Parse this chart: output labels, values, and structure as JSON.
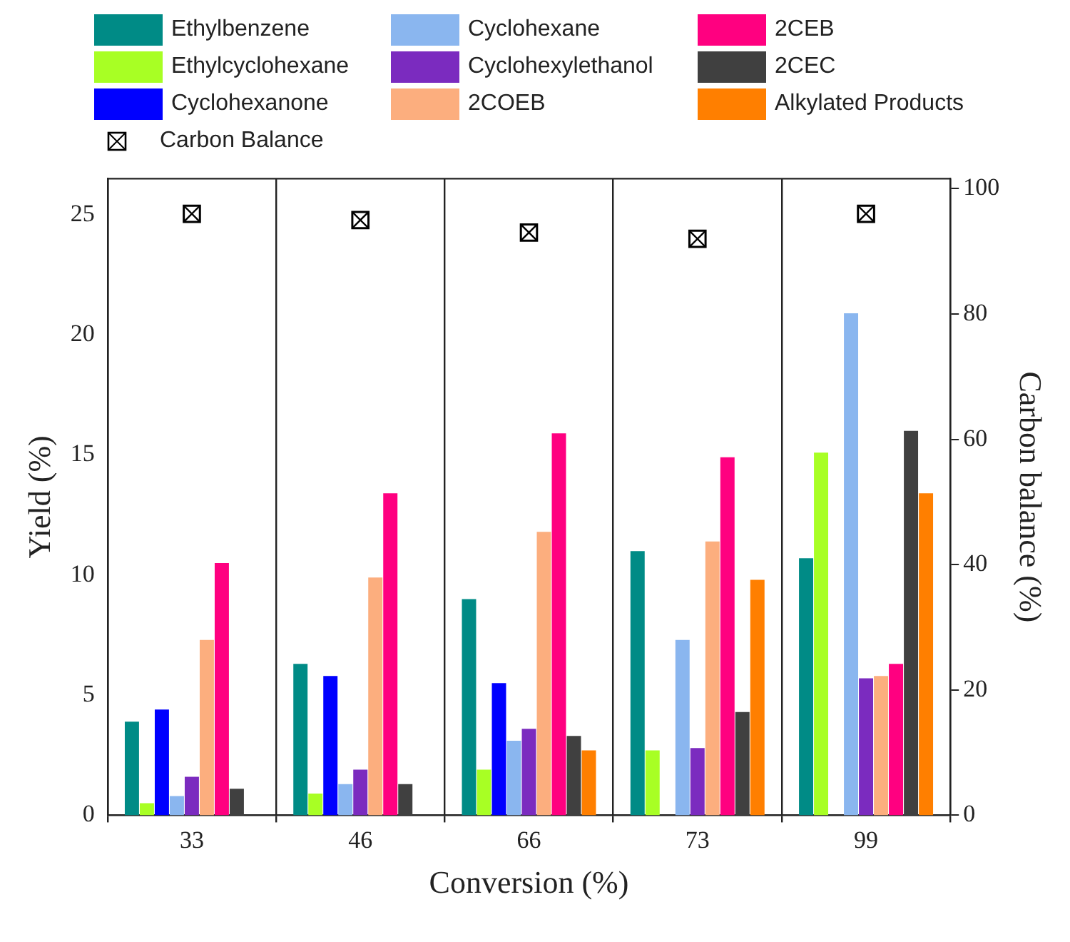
{
  "chart_data": {
    "type": "bar",
    "xlabel": "Conversion (%)",
    "ylabel": "Yield (%)",
    "y2label": "Carbon balance (%)",
    "categories": [
      "33",
      "46",
      "66",
      "73",
      "99"
    ],
    "series": [
      {
        "name": "Ethylbenzene",
        "color": "#008b86",
        "values": [
          3.9,
          6.3,
          9.0,
          11.0,
          10.7
        ]
      },
      {
        "name": "Ethylcyclohexane",
        "color": "#a8ff24",
        "values": [
          0.5,
          0.9,
          1.9,
          2.7,
          15.1
        ]
      },
      {
        "name": "Cyclohexanone",
        "color": "#0000ff",
        "values": [
          4.4,
          5.8,
          5.5,
          null,
          null
        ]
      },
      {
        "name": "Cyclohexane",
        "color": "#8ab6ef",
        "values": [
          0.8,
          1.3,
          3.1,
          7.3,
          20.9
        ]
      },
      {
        "name": "Cyclohexylethanol",
        "color": "#7b2bbf",
        "values": [
          1.6,
          1.9,
          3.6,
          2.8,
          5.7
        ]
      },
      {
        "name": "2COEB",
        "color": "#fcae7e",
        "values": [
          7.3,
          9.9,
          11.8,
          11.4,
          5.8
        ]
      },
      {
        "name": "2CEB",
        "color": "#ff0080",
        "values": [
          10.5,
          13.4,
          15.9,
          14.9,
          6.3
        ]
      },
      {
        "name": "2CEC",
        "color": "#404040",
        "values": [
          1.1,
          1.3,
          3.3,
          4.3,
          16.0
        ]
      },
      {
        "name": "Alkylated Products",
        "color": "#ff7f00",
        "values": [
          null,
          null,
          2.7,
          9.8,
          13.4
        ]
      },
      {
        "name": "Carbon Balance",
        "type": "scatter",
        "axis": "y2",
        "marker": "square",
        "color": "#000000",
        "values": [
          96,
          95,
          93,
          92,
          96
        ]
      }
    ],
    "ylim": [
      0,
      26.5
    ],
    "yticks": [
      0,
      5,
      10,
      15,
      20,
      25
    ],
    "y2lim": [
      0,
      101.6
    ],
    "y2ticks": [
      0,
      20,
      40,
      60,
      80,
      100
    ],
    "grid": "x",
    "legend": "top"
  }
}
